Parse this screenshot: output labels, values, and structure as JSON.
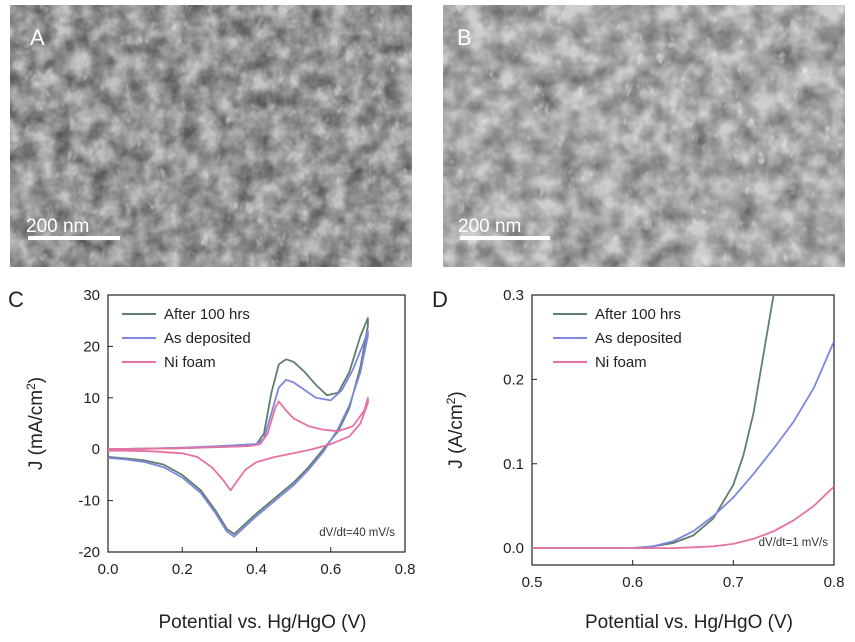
{
  "colors": {
    "after": "#5f7f6c",
    "as_deposited": "#7e86e0",
    "ni_foam": "#e6729f",
    "sem_base": "#8a8a8a"
  },
  "images": [
    {
      "label": "A",
      "scale_bar": "200 nm"
    },
    {
      "label": "B",
      "scale_bar": "200 nm"
    }
  ],
  "chart_data": [
    {
      "panel": "C",
      "type": "line",
      "xlabel": "Potential vs. Hg/HgO (V)",
      "ylabel": "J (mA/cm",
      "ylabel_sup": "2",
      "ylabel_end": ")",
      "xlim": [
        0.0,
        0.8
      ],
      "ylim": [
        -20,
        30
      ],
      "xticks": [
        "0.0",
        "0.2",
        "0.4",
        "0.6",
        "0.8"
      ],
      "xtick_values": [
        0.0,
        0.2,
        0.4,
        0.6,
        0.8
      ],
      "yticks": [
        "-20",
        "-10",
        "0",
        "10",
        "20",
        "30"
      ],
      "ytick_values": [
        -20,
        -10,
        0,
        10,
        20,
        30
      ],
      "annotation": "dV/dt=40 mV/s",
      "legend": [
        "After 100 hrs",
        "As deposited",
        "Ni foam"
      ],
      "series": [
        {
          "name": "After 100 hrs",
          "color_key": "after",
          "x": [
            0.0,
            0.1,
            0.2,
            0.3,
            0.4,
            0.42,
            0.44,
            0.46,
            0.48,
            0.5,
            0.53,
            0.56,
            0.59,
            0.62,
            0.65,
            0.68,
            0.7,
            0.7,
            0.68,
            0.65,
            0.62,
            0.58,
            0.54,
            0.5,
            0.45,
            0.4,
            0.37,
            0.34,
            0.32,
            0.29,
            0.25,
            0.2,
            0.15,
            0.1,
            0.05,
            0.0
          ],
          "y": [
            0.0,
            0.1,
            0.2,
            0.5,
            1.0,
            3.0,
            11.0,
            16.5,
            17.5,
            17.0,
            15.0,
            12.5,
            10.5,
            11.0,
            15.0,
            22.0,
            25.5,
            24.0,
            16.0,
            8.0,
            3.5,
            0.0,
            -3.5,
            -6.5,
            -9.5,
            -12.5,
            -14.5,
            -16.5,
            -15.5,
            -12.0,
            -8.0,
            -5.0,
            -3.0,
            -2.2,
            -1.8,
            -1.5
          ]
        },
        {
          "name": "As deposited",
          "color_key": "as_deposited",
          "x": [
            0.0,
            0.1,
            0.2,
            0.3,
            0.4,
            0.42,
            0.44,
            0.46,
            0.48,
            0.5,
            0.53,
            0.56,
            0.6,
            0.63,
            0.66,
            0.69,
            0.7,
            0.7,
            0.68,
            0.65,
            0.62,
            0.58,
            0.54,
            0.5,
            0.45,
            0.4,
            0.37,
            0.34,
            0.32,
            0.29,
            0.25,
            0.2,
            0.15,
            0.1,
            0.05,
            0.0
          ],
          "y": [
            0.0,
            0.1,
            0.3,
            0.6,
            1.0,
            2.0,
            7.0,
            12.0,
            13.5,
            13.0,
            11.5,
            10.0,
            9.5,
            11.5,
            15.5,
            21.0,
            23.0,
            22.0,
            15.0,
            8.5,
            4.0,
            -0.5,
            -4.0,
            -7.0,
            -10.0,
            -13.0,
            -15.0,
            -17.0,
            -16.0,
            -12.5,
            -8.5,
            -5.5,
            -3.5,
            -2.5,
            -2.0,
            -1.7
          ]
        },
        {
          "name": "Ni foam",
          "color_key": "ni_foam",
          "x": [
            0.0,
            0.2,
            0.3,
            0.38,
            0.41,
            0.43,
            0.45,
            0.46,
            0.48,
            0.5,
            0.54,
            0.58,
            0.62,
            0.66,
            0.69,
            0.7,
            0.7,
            0.68,
            0.65,
            0.6,
            0.55,
            0.5,
            0.45,
            0.4,
            0.37,
            0.35,
            0.33,
            0.31,
            0.28,
            0.24,
            0.2,
            0.12,
            0.05,
            0.0
          ],
          "y": [
            0.0,
            0.2,
            0.4,
            0.6,
            1.0,
            3.0,
            8.0,
            9.3,
            7.5,
            6.0,
            4.5,
            3.8,
            3.5,
            4.5,
            7.5,
            10.0,
            9.0,
            5.0,
            2.5,
            1.0,
            0.0,
            -0.8,
            -1.5,
            -2.5,
            -4.0,
            -6.0,
            -8.0,
            -6.0,
            -3.5,
            -1.5,
            -0.8,
            -0.4,
            -0.3,
            -0.3
          ]
        }
      ]
    },
    {
      "panel": "D",
      "type": "line",
      "xlabel": "Potential vs. Hg/HgO (V)",
      "ylabel": "J (A/cm",
      "ylabel_sup": "2",
      "ylabel_end": ")",
      "xlim": [
        0.5,
        0.8
      ],
      "ylim": [
        -0.02,
        0.3
      ],
      "xticks": [
        "0.5",
        "0.6",
        "0.7",
        "0.8"
      ],
      "xtick_values": [
        0.5,
        0.6,
        0.7,
        0.8
      ],
      "yticks": [
        "0.0",
        "0.1",
        "0.2",
        "0.3"
      ],
      "ytick_values": [
        0.0,
        0.1,
        0.2,
        0.3
      ],
      "annotation": "dV/dt=1 mV/s",
      "legend": [
        "After 100 hrs",
        "As deposited",
        "Ni foam"
      ],
      "series": [
        {
          "name": "After 100 hrs",
          "color_key": "after",
          "x": [
            0.5,
            0.55,
            0.6,
            0.62,
            0.64,
            0.66,
            0.68,
            0.7,
            0.71,
            0.72,
            0.73,
            0.74
          ],
          "y": [
            0.0,
            0.0,
            0.0,
            0.002,
            0.006,
            0.015,
            0.035,
            0.075,
            0.11,
            0.16,
            0.23,
            0.3
          ]
        },
        {
          "name": "As deposited",
          "color_key": "as_deposited",
          "x": [
            0.5,
            0.55,
            0.6,
            0.62,
            0.64,
            0.66,
            0.68,
            0.7,
            0.72,
            0.74,
            0.76,
            0.78,
            0.8
          ],
          "y": [
            0.0,
            0.0,
            0.0,
            0.002,
            0.008,
            0.02,
            0.038,
            0.06,
            0.088,
            0.118,
            0.15,
            0.19,
            0.245
          ]
        },
        {
          "name": "Ni foam",
          "color_key": "ni_foam",
          "x": [
            0.5,
            0.6,
            0.64,
            0.66,
            0.68,
            0.7,
            0.72,
            0.74,
            0.76,
            0.78,
            0.8
          ],
          "y": [
            0.0,
            0.0,
            0.0,
            0.001,
            0.002,
            0.005,
            0.011,
            0.02,
            0.033,
            0.05,
            0.073
          ]
        }
      ]
    }
  ]
}
